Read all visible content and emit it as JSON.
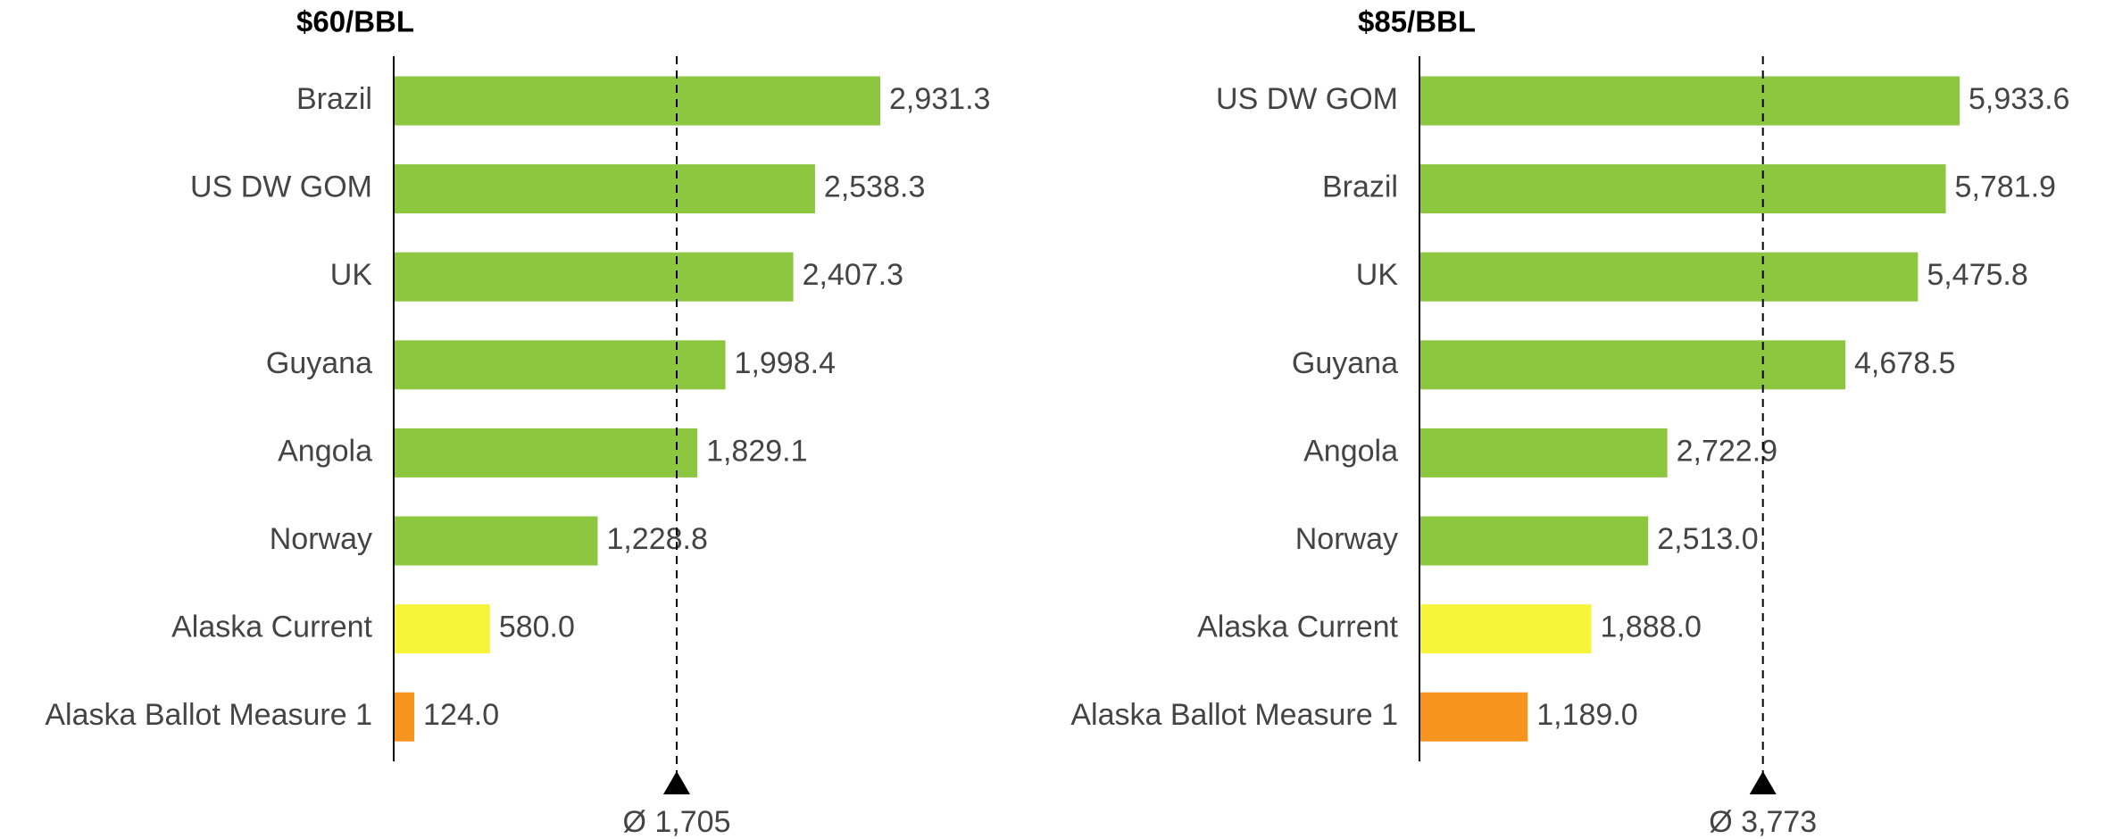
{
  "chart_data": [
    {
      "type": "barh",
      "title": "$60/BBL",
      "categories": [
        "Brazil",
        "US DW GOM",
        "UK",
        "Guyana",
        "Angola",
        "Norway",
        "Alaska Current",
        "Alaska Ballot Measure 1"
      ],
      "values": [
        2931.3,
        2538.3,
        2407.3,
        1998.4,
        1829.1,
        1228.8,
        580.0,
        124.0
      ],
      "value_labels": [
        "2,931.3",
        "2,538.3",
        "2,407.3",
        "1,998.4",
        "1,829.1",
        "1,228.8",
        "580.0",
        "124.0"
      ],
      "colors": [
        "#8dc63f",
        "#8dc63f",
        "#8dc63f",
        "#8dc63f",
        "#8dc63f",
        "#8dc63f",
        "#f7f43a",
        "#f7941d"
      ],
      "average": {
        "value": 1705,
        "label": "Ø 1,705"
      }
    },
    {
      "type": "barh",
      "title": "$85/BBL",
      "categories": [
        "US DW GOM",
        "Brazil",
        "UK",
        "Guyana",
        "Angola",
        "Norway",
        "Alaska Current",
        "Alaska Ballot Measure 1"
      ],
      "values": [
        5933.6,
        5781.9,
        5475.8,
        4678.5,
        2722.9,
        2513.0,
        1888.0,
        1189.0
      ],
      "value_labels": [
        "5,933.6",
        "5,781.9",
        "5,475.8",
        "4,678.5",
        "2,722.9",
        "2,513.0",
        "1,888.0",
        "1,189.0"
      ],
      "colors": [
        "#8dc63f",
        "#8dc63f",
        "#8dc63f",
        "#8dc63f",
        "#8dc63f",
        "#8dc63f",
        "#f7f43a",
        "#f7941d"
      ],
      "average": {
        "value": 3773,
        "label": "Ø 3,773"
      }
    }
  ]
}
